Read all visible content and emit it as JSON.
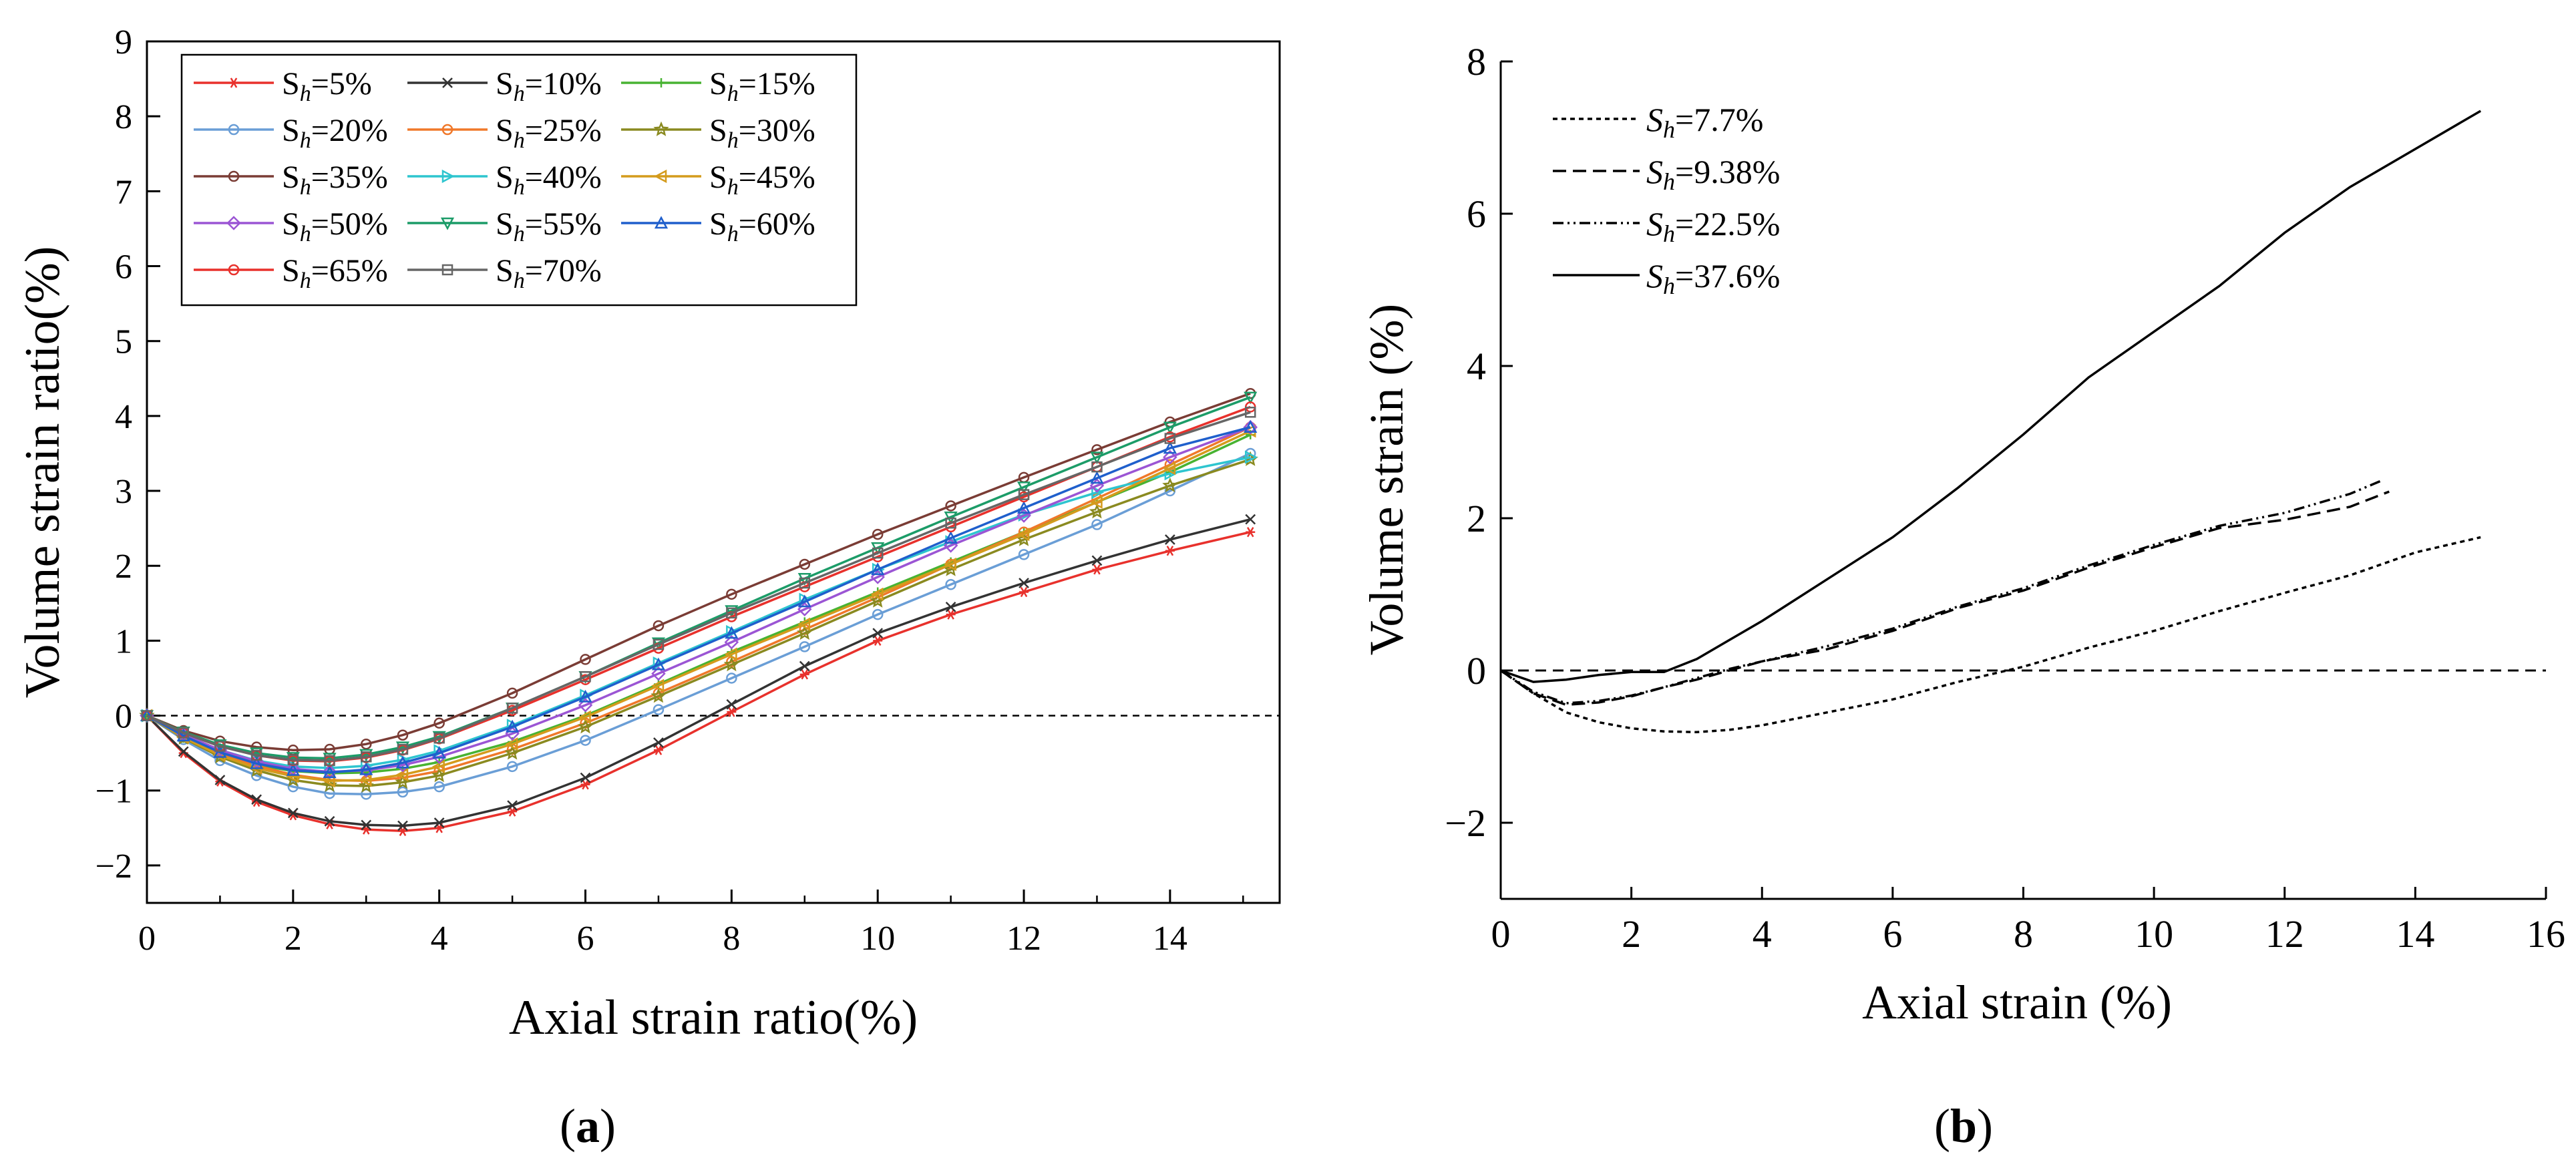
{
  "chart_data": [
    {
      "type": "line",
      "panel_label": "a",
      "title": "",
      "xlabel": "Axial strain ratio(%)",
      "ylabel": "Volume strain ratio(%)",
      "xlim": [
        0,
        15.5
      ],
      "ylim": [
        -2.5,
        9
      ],
      "xticks": [
        0,
        2,
        4,
        6,
        8,
        10,
        12,
        14
      ],
      "yticks": [
        -2,
        -1,
        0,
        1,
        2,
        3,
        4,
        5,
        6,
        7,
        8,
        9
      ],
      "grid": false,
      "legend": "top-left",
      "reference_line": {
        "y": 0,
        "style": "dashed"
      },
      "x": [
        0,
        0.5,
        1,
        1.5,
        2,
        2.5,
        3,
        3.5,
        4,
        5,
        6,
        7,
        8,
        9,
        10,
        11,
        12,
        13,
        14,
        15.1
      ],
      "series": [
        {
          "sub": "h",
          "eq": "=5%",
          "color": "#e8312c",
          "marker": "asterisk",
          "values": [
            0,
            -0.5,
            -0.88,
            -1.15,
            -1.33,
            -1.45,
            -1.52,
            -1.54,
            -1.5,
            -1.28,
            -0.92,
            -0.46,
            0.05,
            0.55,
            1.0,
            1.35,
            1.65,
            1.95,
            2.2,
            2.45
          ]
        },
        {
          "sub": "h",
          "eq": "=10%",
          "color": "#333333",
          "marker": "x",
          "values": [
            0,
            -0.48,
            -0.86,
            -1.12,
            -1.3,
            -1.41,
            -1.46,
            -1.47,
            -1.43,
            -1.2,
            -0.83,
            -0.36,
            0.15,
            0.66,
            1.1,
            1.45,
            1.77,
            2.07,
            2.35,
            2.62
          ]
        },
        {
          "sub": "h",
          "eq": "=15%",
          "color": "#48b332",
          "marker": "plus",
          "values": [
            0,
            -0.3,
            -0.52,
            -0.66,
            -0.74,
            -0.77,
            -0.76,
            -0.71,
            -0.62,
            -0.35,
            0.0,
            0.42,
            0.85,
            1.25,
            1.65,
            2.05,
            2.45,
            2.85,
            3.25,
            3.75
          ]
        },
        {
          "sub": "h",
          "eq": "=20%",
          "color": "#6a9ed6",
          "marker": "circle",
          "values": [
            0,
            -0.32,
            -0.6,
            -0.8,
            -0.95,
            -1.04,
            -1.05,
            -1.02,
            -0.95,
            -0.68,
            -0.33,
            0.08,
            0.5,
            0.92,
            1.35,
            1.75,
            2.15,
            2.55,
            3.0,
            3.5
          ]
        },
        {
          "sub": "h",
          "eq": "=25%",
          "color": "#f0782a",
          "marker": "circle",
          "values": [
            0,
            -0.28,
            -0.5,
            -0.67,
            -0.79,
            -0.86,
            -0.87,
            -0.83,
            -0.74,
            -0.45,
            -0.1,
            0.3,
            0.72,
            1.15,
            1.58,
            2.02,
            2.45,
            2.9,
            3.35,
            3.85
          ]
        },
        {
          "sub": "h",
          "eq": "=30%",
          "color": "#8a8a20",
          "marker": "star",
          "values": [
            0,
            -0.3,
            -0.55,
            -0.73,
            -0.86,
            -0.93,
            -0.94,
            -0.89,
            -0.8,
            -0.5,
            -0.15,
            0.26,
            0.68,
            1.1,
            1.53,
            1.95,
            2.35,
            2.72,
            3.07,
            3.42
          ]
        },
        {
          "sub": "h",
          "eq": "=35%",
          "color": "#7a3c35",
          "marker": "circle",
          "values": [
            0,
            -0.2,
            -0.34,
            -0.42,
            -0.46,
            -0.45,
            -0.38,
            -0.26,
            -0.1,
            0.3,
            0.75,
            1.2,
            1.62,
            2.02,
            2.42,
            2.8,
            3.18,
            3.55,
            3.92,
            4.3
          ]
        },
        {
          "sub": "h",
          "eq": "=40%",
          "color": "#2ec5cf",
          "marker": "triangle-right",
          "values": [
            0,
            -0.26,
            -0.46,
            -0.6,
            -0.68,
            -0.7,
            -0.67,
            -0.59,
            -0.47,
            -0.13,
            0.27,
            0.7,
            1.12,
            1.55,
            1.95,
            2.32,
            2.68,
            2.98,
            3.23,
            3.45
          ]
        },
        {
          "sub": "h",
          "eq": "=45%",
          "color": "#d49b1c",
          "marker": "triangle-left",
          "values": [
            0,
            -0.29,
            -0.53,
            -0.7,
            -0.81,
            -0.87,
            -0.86,
            -0.79,
            -0.68,
            -0.38,
            -0.02,
            0.4,
            0.82,
            1.22,
            1.62,
            2.02,
            2.42,
            2.85,
            3.3,
            3.8
          ]
        },
        {
          "sub": "h",
          "eq": "=50%",
          "color": "#9b55d4",
          "marker": "diamond",
          "values": [
            0,
            -0.25,
            -0.46,
            -0.61,
            -0.71,
            -0.75,
            -0.73,
            -0.66,
            -0.55,
            -0.24,
            0.14,
            0.56,
            0.98,
            1.42,
            1.85,
            2.27,
            2.67,
            3.07,
            3.45,
            3.85
          ]
        },
        {
          "sub": "h",
          "eq": "=55%",
          "color": "#1c9c68",
          "marker": "triangle-down",
          "values": [
            0,
            -0.22,
            -0.39,
            -0.5,
            -0.56,
            -0.57,
            -0.52,
            -0.42,
            -0.28,
            0.1,
            0.52,
            0.97,
            1.4,
            1.83,
            2.24,
            2.65,
            3.05,
            3.45,
            3.85,
            4.25
          ]
        },
        {
          "sub": "h",
          "eq": "=60%",
          "color": "#1f5fcc",
          "marker": "triangle-up",
          "values": [
            0,
            -0.27,
            -0.49,
            -0.64,
            -0.73,
            -0.76,
            -0.72,
            -0.63,
            -0.5,
            -0.15,
            0.25,
            0.68,
            1.1,
            1.52,
            1.95,
            2.37,
            2.77,
            3.17,
            3.57,
            3.85
          ]
        },
        {
          "sub": "h",
          "eq": "=65%",
          "color": "#e8312c",
          "marker": "circle",
          "values": [
            0,
            -0.23,
            -0.41,
            -0.53,
            -0.6,
            -0.61,
            -0.56,
            -0.46,
            -0.31,
            0.07,
            0.48,
            0.9,
            1.32,
            1.72,
            2.12,
            2.52,
            2.92,
            3.32,
            3.72,
            4.12
          ]
        },
        {
          "sub": "h",
          "eq": "=70%",
          "color": "#666666",
          "marker": "square",
          "values": [
            0,
            -0.23,
            -0.41,
            -0.53,
            -0.59,
            -0.6,
            -0.55,
            -0.45,
            -0.3,
            0.1,
            0.52,
            0.95,
            1.37,
            1.77,
            2.17,
            2.57,
            2.95,
            3.32,
            3.7,
            4.05
          ]
        }
      ],
      "legend_entries_italic_sub": true
    },
    {
      "type": "line",
      "panel_label": "b",
      "title": "",
      "xlabel": "Axial strain (%)",
      "ylabel": "Volume strain (%)",
      "xlim": [
        0,
        16
      ],
      "ylim": [
        -3,
        8
      ],
      "xticks": [
        0,
        2,
        4,
        6,
        8,
        10,
        12,
        14,
        16
      ],
      "yticks": [
        -2,
        0,
        2,
        4,
        6,
        8
      ],
      "grid": false,
      "legend": "top-left",
      "reference_line": {
        "y": 0,
        "style": "dashed"
      },
      "series": [
        {
          "sub": "h",
          "eq": "=7.7%",
          "dash": "short-dash",
          "x": [
            0,
            0.5,
            1,
            1.5,
            2,
            2.5,
            3,
            3.5,
            4,
            5,
            6,
            7,
            8,
            9,
            10,
            11,
            12,
            13,
            14,
            15
          ],
          "values": [
            0,
            -0.3,
            -0.55,
            -0.68,
            -0.76,
            -0.8,
            -0.81,
            -0.78,
            -0.72,
            -0.55,
            -0.38,
            -0.15,
            0.05,
            0.3,
            0.52,
            0.78,
            1.02,
            1.25,
            1.55,
            1.75
          ]
        },
        {
          "sub": "h",
          "eq": "=9.38%",
          "dash": "dash",
          "x": [
            0,
            0.5,
            1,
            1.5,
            2,
            2.5,
            3,
            3.5,
            4,
            5,
            6,
            7,
            8,
            9,
            10,
            11,
            12,
            13,
            13.6
          ],
          "values": [
            0,
            -0.3,
            -0.45,
            -0.42,
            -0.34,
            -0.22,
            -0.12,
            0.0,
            0.12,
            0.28,
            0.52,
            0.82,
            1.05,
            1.35,
            1.62,
            1.87,
            1.98,
            2.15,
            2.35
          ]
        },
        {
          "sub": "h",
          "eq": "=22.5%",
          "dash": "dash-dot-dot",
          "x": [
            0,
            0.5,
            1,
            1.5,
            2,
            2.5,
            3,
            3.5,
            4,
            5,
            6,
            7,
            8,
            9,
            10,
            11,
            12,
            13,
            13.5
          ],
          "values": [
            0,
            -0.28,
            -0.43,
            -0.4,
            -0.33,
            -0.22,
            -0.1,
            0.02,
            0.12,
            0.32,
            0.55,
            0.84,
            1.08,
            1.38,
            1.65,
            1.9,
            2.07,
            2.32,
            2.5
          ]
        },
        {
          "sub": "h",
          "eq": "=37.6%",
          "dash": "solid",
          "x": [
            0,
            0.5,
            1,
            1.5,
            2,
            2.5,
            3,
            3.5,
            4,
            5,
            6,
            7,
            8,
            9,
            10,
            11,
            12,
            13,
            14,
            15
          ],
          "values": [
            0,
            -0.15,
            -0.12,
            -0.06,
            -0.02,
            -0.02,
            0.15,
            0.4,
            0.65,
            1.2,
            1.75,
            2.4,
            3.1,
            3.85,
            4.45,
            5.05,
            5.75,
            6.35,
            6.85,
            7.35
          ]
        }
      ]
    }
  ]
}
